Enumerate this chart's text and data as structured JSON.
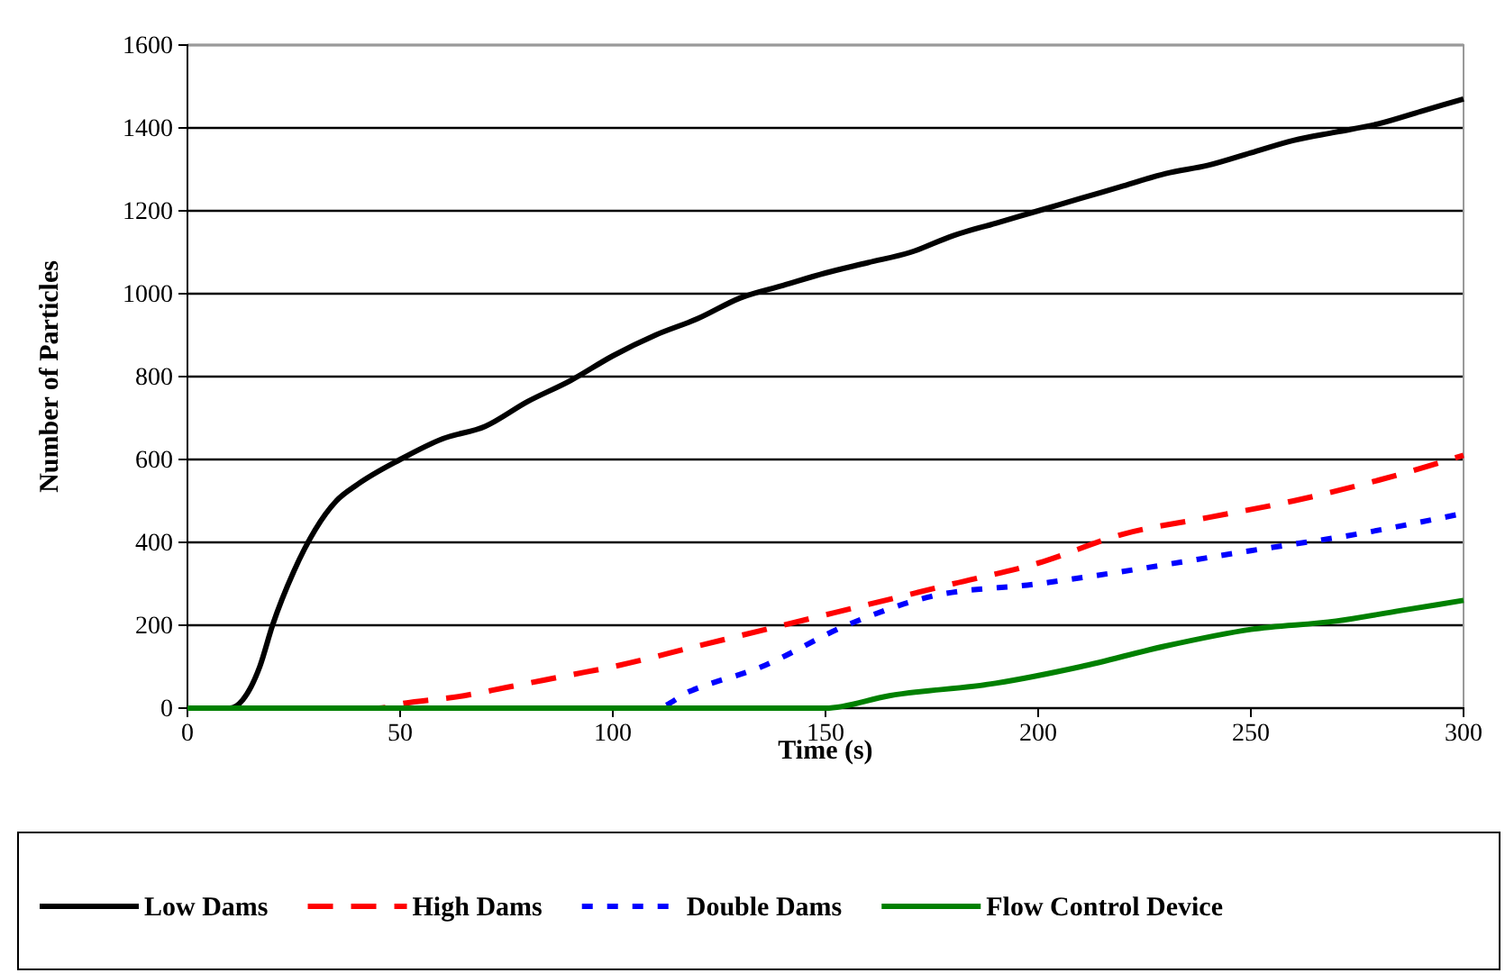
{
  "chart_data": {
    "type": "line",
    "xlabel": "Time (s)",
    "ylabel": "Number of Particles",
    "xlim": [
      0,
      300
    ],
    "xticks": [
      0,
      50,
      100,
      150,
      200,
      250,
      300
    ],
    "ylim": [
      0,
      1600
    ],
    "yticks": [
      0,
      200,
      400,
      600,
      800,
      1000,
      1200,
      1400,
      1600
    ],
    "grid": "y",
    "legend": "bottom",
    "marker": "none",
    "x": [
      0,
      10,
      13,
      17,
      20,
      25,
      30,
      35,
      40,
      50,
      60,
      70,
      80,
      90,
      100,
      110,
      120,
      130,
      140,
      150,
      160,
      170,
      180,
      190,
      200,
      210,
      220,
      230,
      240,
      250,
      260,
      270,
      280,
      290,
      300
    ],
    "series": [
      {
        "name": "Low Dams",
        "color": "#000000",
        "line_style": "solid",
        "values": [
          0,
          0,
          20,
          100,
          200,
          330,
          430,
          500,
          540,
          600,
          650,
          680,
          740,
          790,
          850,
          900,
          940,
          990,
          1020,
          1050,
          1075,
          1100,
          1140,
          1170,
          1200,
          1230,
          1260,
          1290,
          1310,
          1340,
          1370,
          1390,
          1410,
          1440,
          1470
        ]
      },
      {
        "name": "High Dams",
        "color": "#ff0000",
        "line_style": "dashed",
        "x": [
          0,
          45,
          50,
          65,
          75,
          90,
          100,
          120,
          140,
          160,
          180,
          200,
          220,
          240,
          260,
          280,
          300
        ],
        "values": [
          0,
          0,
          10,
          30,
          50,
          80,
          100,
          150,
          200,
          250,
          300,
          350,
          420,
          460,
          500,
          550,
          610
        ]
      },
      {
        "name": "Double Dams",
        "color": "#0000ff",
        "line_style": "dotted",
        "x": [
          0,
          110,
          118,
          135,
          155,
          175,
          200,
          220,
          250,
          275,
          300
        ],
        "values": [
          0,
          0,
          40,
          100,
          200,
          270,
          300,
          330,
          380,
          420,
          470
        ]
      },
      {
        "name": "Flow Control Device",
        "color": "#008000",
        "line_style": "solid",
        "x": [
          0,
          150,
          165,
          190,
          210,
          230,
          250,
          270,
          285,
          300
        ],
        "values": [
          0,
          0,
          30,
          60,
          100,
          150,
          190,
          210,
          235,
          260
        ]
      }
    ]
  }
}
